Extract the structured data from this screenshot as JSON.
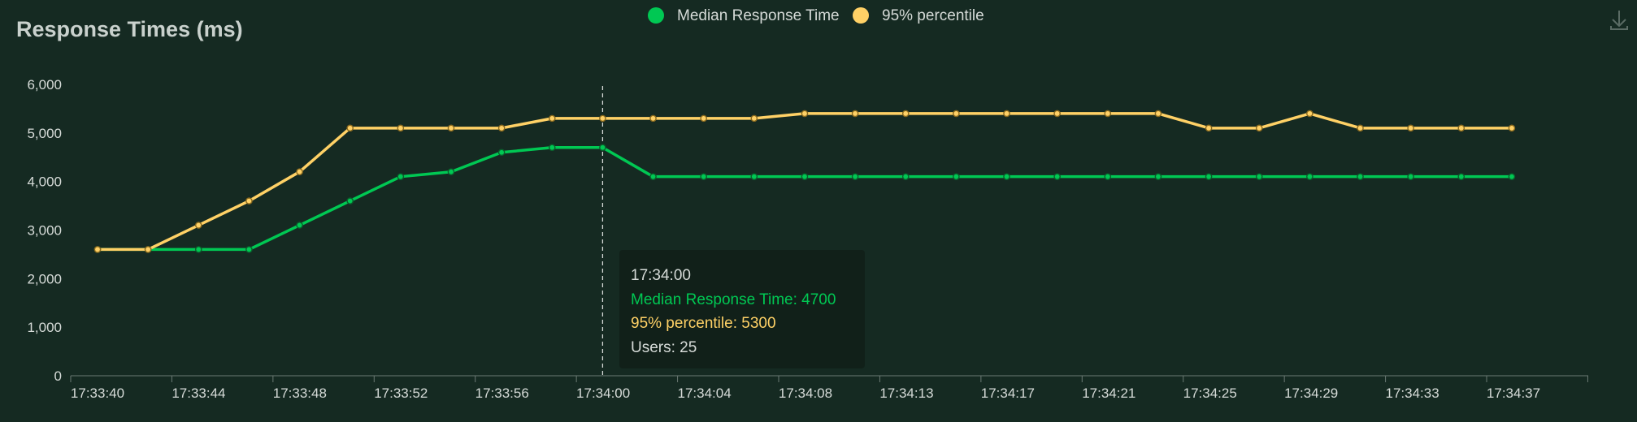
{
  "chart_data": {
    "type": "line",
    "title": "Response Times (ms)",
    "xlabel": "",
    "ylabel": "",
    "ylim": [
      0,
      6000
    ],
    "yticks": [
      0,
      1000,
      2000,
      3000,
      4000,
      5000,
      6000
    ],
    "ytick_labels": [
      "0",
      "1,000",
      "2,000",
      "3,000",
      "4,000",
      "5,000",
      "6,000"
    ],
    "x": [
      "17:33:40",
      "17:33:42",
      "17:33:44",
      "17:33:46",
      "17:33:48",
      "17:33:50",
      "17:33:52",
      "17:33:54",
      "17:33:56",
      "17:33:58",
      "17:34:00",
      "17:34:02",
      "17:34:04",
      "17:34:06",
      "17:34:08",
      "17:34:11",
      "17:34:13",
      "17:34:15",
      "17:34:17",
      "17:34:19",
      "17:34:21",
      "17:34:23",
      "17:34:25",
      "17:34:27",
      "17:34:29",
      "17:34:31",
      "17:34:33",
      "17:34:35",
      "17:34:37"
    ],
    "xtick_labels": [
      "17:33:40",
      "17:33:44",
      "17:33:48",
      "17:33:52",
      "17:33:56",
      "17:34:00",
      "17:34:04",
      "17:34:08",
      "17:34:13",
      "17:34:17",
      "17:34:21",
      "17:34:25",
      "17:34:29",
      "17:34:33",
      "17:34:37"
    ],
    "legend_position": "top-center",
    "grid": false,
    "series": [
      {
        "name": "Median Response Time",
        "color": "#00c853",
        "values": [
          2600,
          2600,
          2600,
          2600,
          3100,
          3600,
          4100,
          4200,
          4600,
          4700,
          4700,
          4100,
          4100,
          4100,
          4100,
          4100,
          4100,
          4100,
          4100,
          4100,
          4100,
          4100,
          4100,
          4100,
          4100,
          4100,
          4100,
          4100,
          4100
        ]
      },
      {
        "name": "95% percentile",
        "color": "#ffd166",
        "values": [
          2600,
          2600,
          3100,
          3600,
          4200,
          5100,
          5100,
          5100,
          5100,
          5300,
          5300,
          5300,
          5300,
          5300,
          5400,
          5400,
          5400,
          5400,
          5400,
          5400,
          5400,
          5400,
          5100,
          5100,
          5400,
          5100,
          5100,
          5100,
          5100
        ]
      }
    ],
    "tooltip": {
      "index": 10,
      "time": "17:34:00",
      "median_line": "Median Response Time: 4700",
      "p95_line": "95% percentile: 5300",
      "users_line": "Users: 25"
    }
  },
  "toolbar": {
    "download_icon": "download-icon"
  }
}
